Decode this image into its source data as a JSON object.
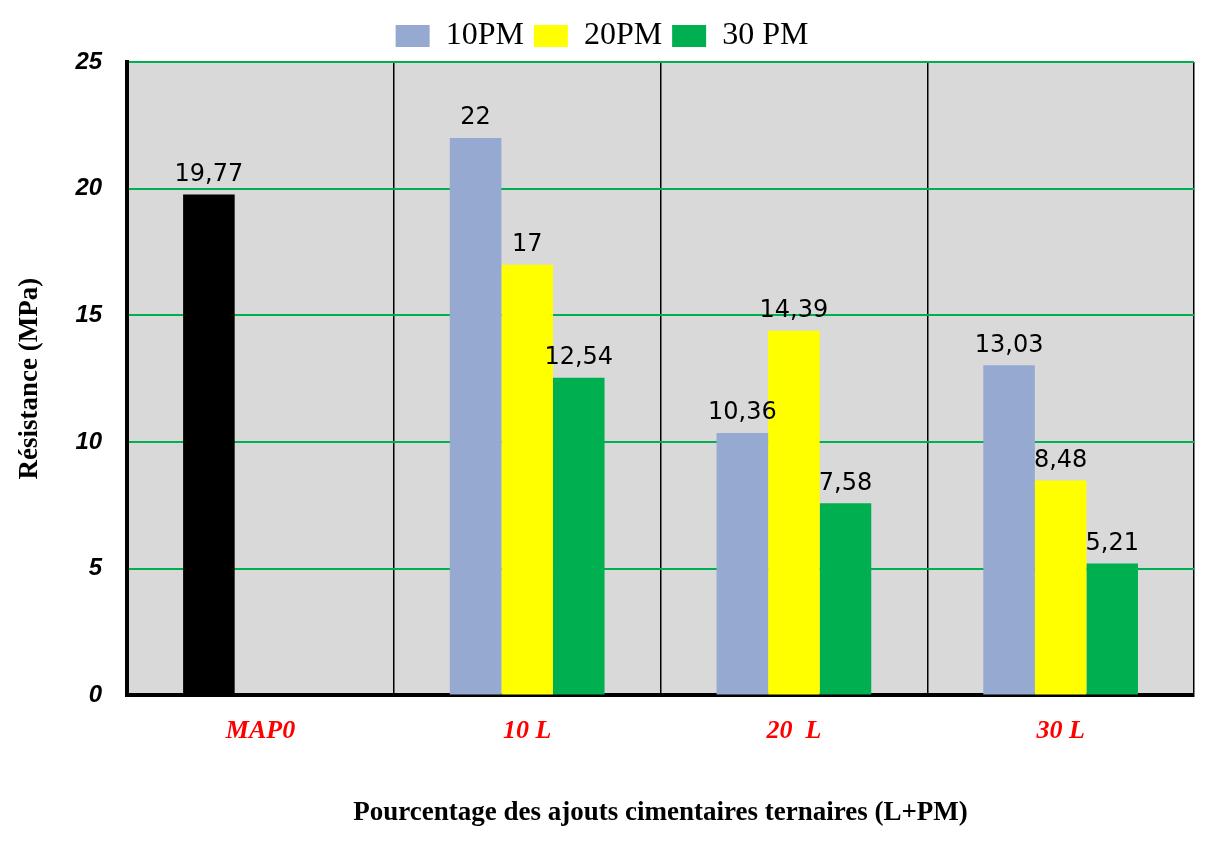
{
  "chart_data": {
    "type": "bar",
    "xlabel": "Pourcentage des ajouts cimentaires ternaires (L+PM)",
    "ylabel": "Résistance (MPa)",
    "categories": [
      "MAP0",
      "10 L",
      "20  L",
      "30 L"
    ],
    "series": [
      {
        "color": "#000000",
        "values": [
          19.77,
          null,
          null,
          null
        ],
        "value_labels": [
          "19,77",
          null,
          null,
          null
        ]
      },
      {
        "name": "10PM",
        "color": "#95a9d1",
        "values": [
          null,
          22,
          10.36,
          13.03
        ],
        "value_labels": [
          null,
          "22",
          "10,36",
          "13,03"
        ]
      },
      {
        "name": "20PM",
        "color": "#ffff00",
        "values": [
          null,
          17,
          14.39,
          8.48
        ],
        "value_labels": [
          null,
          "17",
          "14,39",
          "8,48"
        ]
      },
      {
        "name": "30 PM",
        "color": "#00b050",
        "values": [
          null,
          12.54,
          7.58,
          5.21
        ],
        "value_labels": [
          null,
          "12,54",
          "7,58",
          "5,21"
        ]
      }
    ],
    "ylim": [
      0,
      25
    ],
    "yticks": [
      0,
      5,
      10,
      15,
      20,
      25
    ],
    "grid": true,
    "legend": "top"
  }
}
